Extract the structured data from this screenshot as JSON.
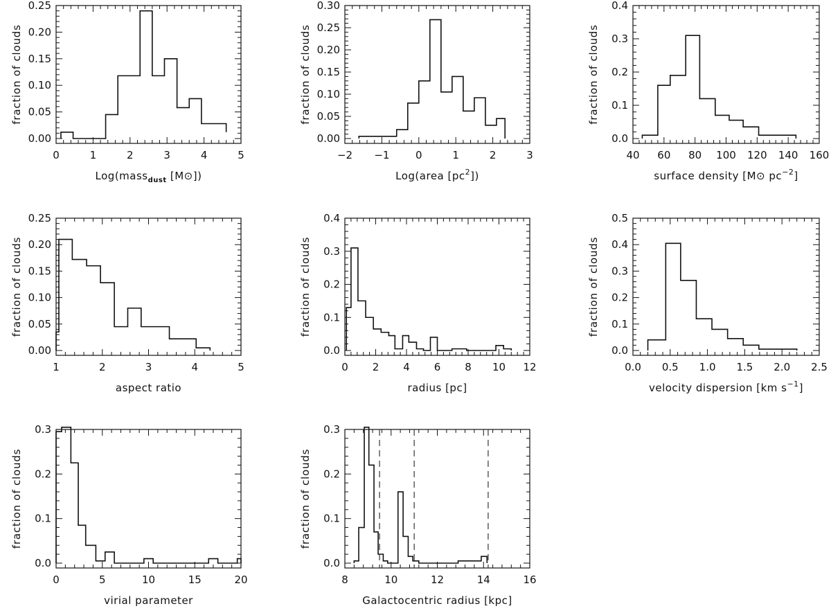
{
  "chart_data": [
    {
      "type": "histogram",
      "ylabel": "fraction of clouds",
      "xlabel": {
        "pre": "Log(mass",
        "sub": "dust",
        "post": " [M⊙])"
      },
      "xlim": [
        0,
        5
      ],
      "ylim": [
        0,
        0.25
      ],
      "xticks": [
        0,
        1,
        2,
        3,
        4,
        5
      ],
      "xtick_labels": [
        "0",
        "1",
        "2",
        "3",
        "4",
        "5"
      ],
      "yticks": [
        0,
        0.05,
        0.1,
        0.15,
        0.2,
        0.25
      ],
      "ytick_labels": [
        "0.00",
        "0.05",
        "0.10",
        "0.15",
        "0.20",
        "0.25"
      ],
      "bin_edges": [
        0.13,
        0.46,
        0.8,
        1.34,
        1.67,
        2.27,
        2.6,
        2.93,
        3.27,
        3.6,
        3.93,
        4.27,
        4.6
      ],
      "values": [
        0.012,
        0.0,
        0.0,
        0.045,
        0.118,
        0.24,
        0.118,
        0.15,
        0.058,
        0.075,
        0.028,
        0.028,
        0.012
      ]
    },
    {
      "type": "histogram",
      "ylabel": "fraction of clouds",
      "xlabel": {
        "pre": "Log(area [pc",
        "sup": "2",
        "post": "])"
      },
      "xlim": [
        -2,
        3
      ],
      "ylim": [
        0,
        0.3
      ],
      "xticks": [
        -2,
        -1,
        0,
        1,
        2,
        3
      ],
      "xtick_labels": [
        "−2",
        "−1",
        "0",
        "1",
        "2",
        "3"
      ],
      "yticks": [
        0,
        0.05,
        0.1,
        0.15,
        0.2,
        0.25,
        0.3
      ],
      "ytick_labels": [
        "0.00",
        "0.05",
        "0.10",
        "0.15",
        "0.20",
        "0.25",
        "0.30"
      ],
      "bin_edges": [
        -1.62,
        -0.6,
        -0.3,
        0.0,
        0.3,
        0.6,
        0.9,
        1.2,
        1.5,
        1.8,
        2.1,
        2.33
      ],
      "values": [
        0.005,
        0.02,
        0.08,
        0.13,
        0.268,
        0.105,
        0.14,
        0.062,
        0.092,
        0.03,
        0.045
      ]
    },
    {
      "type": "histogram",
      "ylabel": "fraction of clouds",
      "xlabel": {
        "pre": "surface density [M⊙ pc",
        "sup": "−2",
        "post": "]"
      },
      "xlim": [
        40,
        160
      ],
      "ylim": [
        0,
        0.4
      ],
      "xticks": [
        40,
        60,
        80,
        100,
        120,
        140,
        160
      ],
      "xtick_labels": [
        "40",
        "60",
        "80",
        "100",
        "120",
        "140",
        "160"
      ],
      "yticks": [
        0,
        0.1,
        0.2,
        0.3,
        0.4
      ],
      "ytick_labels": [
        "0.0",
        "0.1",
        "0.2",
        "0.3",
        "0.4"
      ],
      "bin_edges": [
        46,
        56,
        64,
        74,
        83,
        93,
        102,
        111,
        121,
        145
      ],
      "values": [
        0.01,
        0.16,
        0.19,
        0.31,
        0.12,
        0.07,
        0.055,
        0.035,
        0.01
      ]
    },
    {
      "type": "histogram",
      "ylabel": "fraction of clouds",
      "xlabel": {
        "pre": "aspect ratio"
      },
      "xlim": [
        1,
        5
      ],
      "ylim": [
        0,
        0.25
      ],
      "xticks": [
        1,
        2,
        3,
        4,
        5
      ],
      "xtick_labels": [
        "1",
        "2",
        "3",
        "4",
        "5"
      ],
      "yticks": [
        0,
        0.05,
        0.1,
        0.15,
        0.2,
        0.25
      ],
      "ytick_labels": [
        "0.00",
        "0.05",
        "0.10",
        "0.15",
        "0.20",
        "0.25"
      ],
      "bin_edges": [
        1.0,
        1.06,
        1.35,
        1.66,
        1.96,
        2.26,
        2.55,
        2.84,
        3.14,
        3.45,
        4.03,
        4.33
      ],
      "values": [
        0.035,
        0.21,
        0.172,
        0.16,
        0.128,
        0.045,
        0.08,
        0.045,
        0.045,
        0.022,
        0.005
      ]
    },
    {
      "type": "histogram",
      "ylabel": "fraction of clouds",
      "xlabel": {
        "pre": "radius [pc]"
      },
      "xlim": [
        0,
        12
      ],
      "ylim": [
        0,
        0.4
      ],
      "xticks": [
        0,
        2,
        4,
        6,
        8,
        10,
        12
      ],
      "xtick_labels": [
        "0",
        "2",
        "4",
        "6",
        "8",
        "10",
        "12"
      ],
      "yticks": [
        0,
        0.1,
        0.2,
        0.3,
        0.4
      ],
      "ytick_labels": [
        "0.0",
        "0.1",
        "0.2",
        "0.3",
        "0.4"
      ],
      "bin_edges": [
        0.1,
        0.4,
        0.85,
        1.35,
        1.85,
        2.35,
        2.85,
        3.25,
        3.75,
        4.15,
        4.65,
        5.1,
        5.55,
        6.0,
        6.95,
        7.9,
        9.8,
        10.3,
        10.8
      ],
      "values": [
        0.13,
        0.31,
        0.15,
        0.1,
        0.065,
        0.055,
        0.045,
        0.005,
        0.045,
        0.025,
        0.005,
        0.0,
        0.04,
        0.0,
        0.005,
        0.0,
        0.015,
        0.005
      ]
    },
    {
      "type": "histogram",
      "ylabel": "fraction of clouds",
      "xlabel": {
        "pre": "velocity dispersion [km s",
        "sup": "−1",
        "post": "]"
      },
      "xlim": [
        0,
        2.5
      ],
      "ylim": [
        0,
        0.5
      ],
      "xticks": [
        0,
        0.5,
        1,
        1.5,
        2,
        2.5
      ],
      "xtick_labels": [
        "0.0",
        "0.5",
        "1.0",
        "1.5",
        "2.0",
        "2.5"
      ],
      "yticks": [
        0,
        0.1,
        0.2,
        0.3,
        0.4,
        0.5
      ],
      "ytick_labels": [
        "0.0",
        "0.1",
        "0.2",
        "0.3",
        "0.4",
        "0.5"
      ],
      "bin_edges": [
        0.2,
        0.44,
        0.64,
        0.85,
        1.06,
        1.27,
        1.48,
        1.69,
        2.2
      ],
      "values": [
        0.04,
        0.405,
        0.265,
        0.12,
        0.08,
        0.045,
        0.02,
        0.005
      ]
    },
    {
      "type": "histogram",
      "ylabel": "fraction of clouds",
      "xlabel": {
        "pre": "virial parameter"
      },
      "xlim": [
        0,
        20
      ],
      "ylim": [
        0,
        0.3
      ],
      "xticks": [
        0,
        5,
        10,
        15,
        20
      ],
      "xtick_labels": [
        "0",
        "5",
        "10",
        "15",
        "20"
      ],
      "yticks": [
        0,
        0.1,
        0.2,
        0.3
      ],
      "ytick_labels": [
        "0.0",
        "0.1",
        "0.2",
        "0.3"
      ],
      "bin_edges": [
        0.0,
        0.6,
        1.6,
        2.4,
        3.2,
        4.3,
        5.3,
        6.3,
        9.5,
        10.5,
        16.5,
        17.5,
        19.6,
        20.0
      ],
      "values": [
        0.295,
        0.305,
        0.225,
        0.085,
        0.04,
        0.005,
        0.025,
        0.0,
        0.01,
        0.0,
        0.01,
        0.0,
        0.01
      ]
    },
    {
      "type": "histogram",
      "ylabel": "fraction of clouds",
      "xlabel": {
        "pre": "Galactocentric radius [kpc]"
      },
      "xlim": [
        8,
        16
      ],
      "ylim": [
        0,
        0.3
      ],
      "xticks": [
        8,
        10,
        12,
        14,
        16
      ],
      "xtick_labels": [
        "8",
        "10",
        "12",
        "14",
        "16"
      ],
      "yticks": [
        0,
        0.1,
        0.2,
        0.3
      ],
      "ytick_labels": [
        "0.0",
        "0.1",
        "0.2",
        "0.3"
      ],
      "bin_edges": [
        8.4,
        8.6,
        8.84,
        9.04,
        9.26,
        9.44,
        9.66,
        9.85,
        10.3,
        10.52,
        10.74,
        10.94,
        11.2,
        12.9,
        13.9,
        14.15
      ],
      "values": [
        0.005,
        0.08,
        0.305,
        0.22,
        0.07,
        0.02,
        0.005,
        0.0,
        0.16,
        0.06,
        0.015,
        0.005,
        0.0,
        0.005,
        0.015
      ],
      "dashed_lines_x": [
        9.5,
        11.0,
        14.2
      ]
    }
  ]
}
